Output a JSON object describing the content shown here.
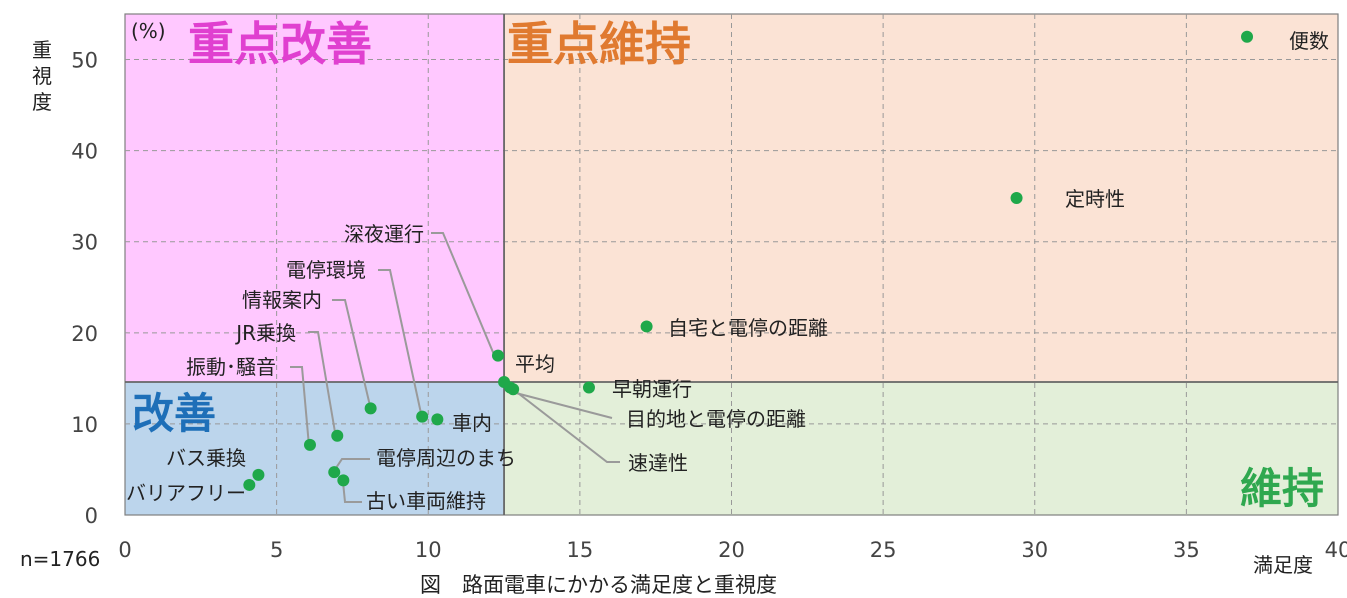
{
  "chart_data": {
    "type": "scatter",
    "title": "",
    "caption": "図　路面電車にかかる満足度と重視度",
    "xlabel": "満足度",
    "ylabel": "重視度",
    "yunit": "(%)",
    "sample": "n=1766",
    "xlim": [
      0,
      40
    ],
    "ylim": [
      0,
      55
    ],
    "xticks": [
      0,
      5,
      10,
      15,
      20,
      25,
      30,
      35,
      40
    ],
    "yticks": [
      0,
      10,
      20,
      30,
      40,
      50
    ],
    "grid": true,
    "average": {
      "label": "平均",
      "x": 12.5,
      "y": 14.6
    },
    "quadrants": [
      {
        "name": "重点改善",
        "color": "#FFC8FF",
        "text_color": "#E040D0"
      },
      {
        "name": "重点維持",
        "color": "#FBE3D5",
        "text_color": "#E07A30"
      },
      {
        "name": "改善",
        "color": "#BCD5EC",
        "text_color": "#1E6FB8"
      },
      {
        "name": "維持",
        "color": "#E3EFD9",
        "text_color": "#2FA84F"
      }
    ],
    "point_color": "#1FA84A",
    "points": [
      {
        "label": "便数",
        "x": 37.0,
        "y": 52.5
      },
      {
        "label": "定時性",
        "x": 29.4,
        "y": 34.8
      },
      {
        "label": "自宅と電停の距離",
        "x": 17.2,
        "y": 20.7
      },
      {
        "label": "深夜運行",
        "x": 12.3,
        "y": 17.5
      },
      {
        "label": "早朝運行",
        "x": 15.3,
        "y": 14.0
      },
      {
        "label": "目的地と電停の距離",
        "x": 12.7,
        "y": 14.0
      },
      {
        "label": "速達性",
        "x": 12.8,
        "y": 13.8
      },
      {
        "label": "車内",
        "x": 10.3,
        "y": 10.5
      },
      {
        "label": "電停環境",
        "x": 9.8,
        "y": 10.8
      },
      {
        "label": "情報案内",
        "x": 8.1,
        "y": 11.7
      },
      {
        "label": "JR乗換",
        "x": 7.0,
        "y": 8.7
      },
      {
        "label": "振動･騒音",
        "x": 6.1,
        "y": 7.7
      },
      {
        "label": "電停周辺のまち",
        "x": 6.9,
        "y": 4.7
      },
      {
        "label": "古い車両維持",
        "x": 7.2,
        "y": 3.8
      },
      {
        "label": "バス乗換",
        "x": 4.4,
        "y": 4.4
      },
      {
        "label": "バリアフリー",
        "x": 4.1,
        "y": 3.3
      }
    ]
  }
}
